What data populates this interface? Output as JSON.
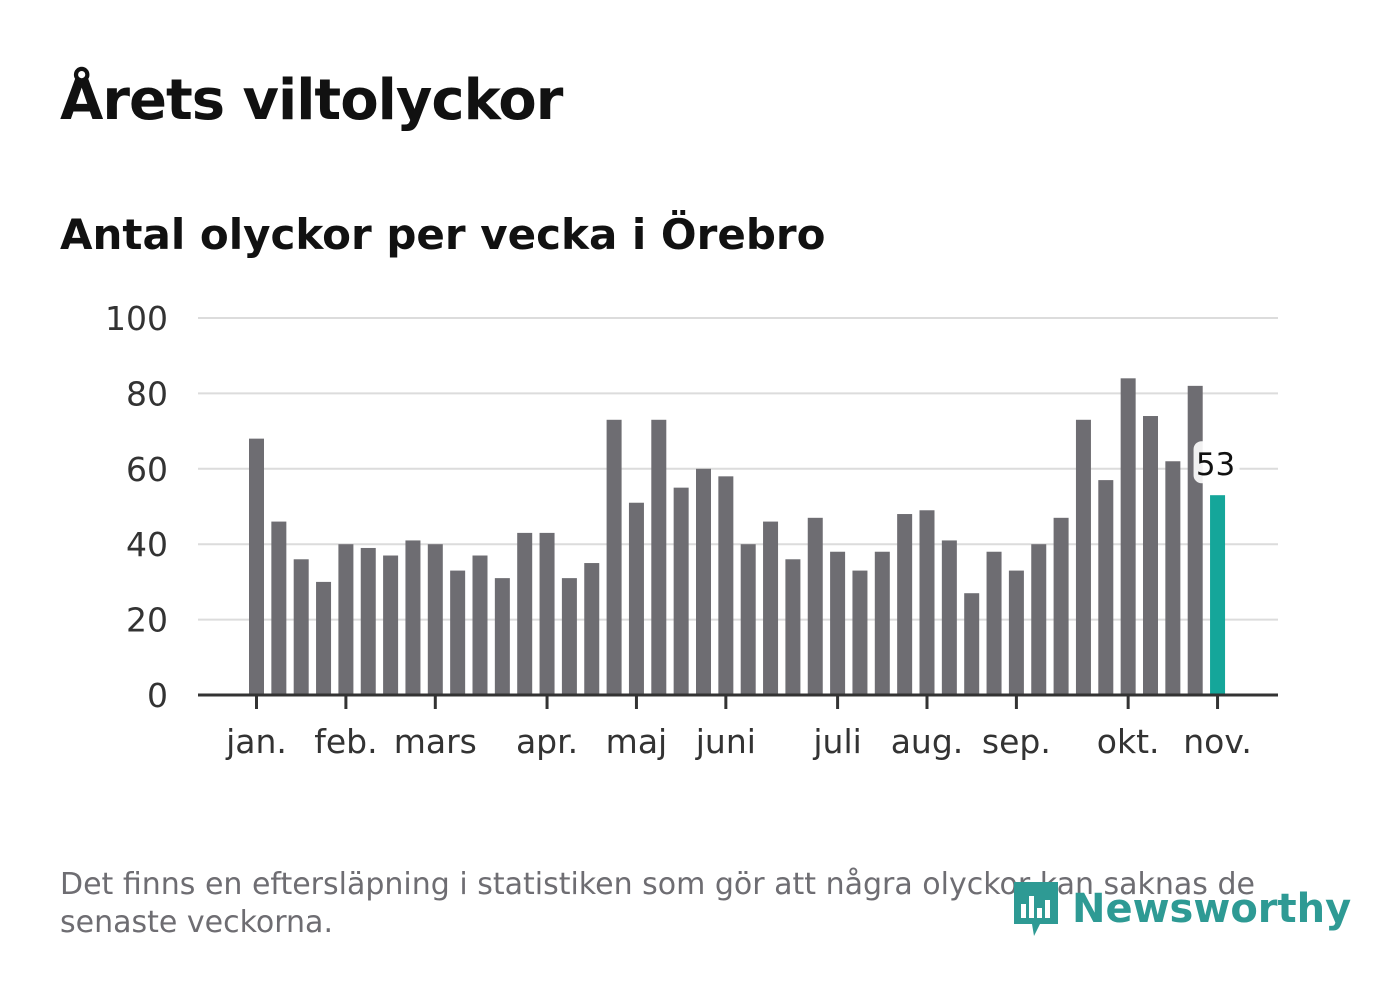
{
  "title": "Årets viltolyckor",
  "subtitle": "Antal olyckor per vecka i Örebro",
  "footnote": "Det finns en eftersläpning i statistiken som gör att några olyckor kan saknas de senaste veckorna.",
  "brand": {
    "name": "Newsworthy",
    "icon": "newsworthy-logo-icon",
    "color": "#2e9a94"
  },
  "chart_data": {
    "type": "bar",
    "title": "Årets viltolyckor",
    "subtitle": "Antal olyckor per vecka i Örebro",
    "xlabel": "",
    "ylabel": "",
    "ylim": [
      0,
      100
    ],
    "yticks": [
      "0",
      "20",
      "40",
      "60",
      "80",
      "100"
    ],
    "grid": true,
    "month_labels": [
      {
        "label": "jan.",
        "week": 1
      },
      {
        "label": "feb.",
        "week": 5
      },
      {
        "label": "mars",
        "week": 9
      },
      {
        "label": "apr.",
        "week": 14
      },
      {
        "label": "maj",
        "week": 18
      },
      {
        "label": "juni",
        "week": 22
      },
      {
        "label": "juli",
        "week": 27
      },
      {
        "label": "aug.",
        "week": 31
      },
      {
        "label": "sep.",
        "week": 35
      },
      {
        "label": "okt.",
        "week": 40
      },
      {
        "label": "nov.",
        "week": 44
      }
    ],
    "values": [
      68,
      46,
      36,
      30,
      40,
      39,
      37,
      41,
      40,
      33,
      37,
      31,
      43,
      43,
      31,
      35,
      73,
      51,
      73,
      55,
      60,
      58,
      40,
      46,
      36,
      47,
      38,
      33,
      38,
      48,
      49,
      41,
      27,
      38,
      33,
      40,
      47,
      73,
      57,
      84,
      74,
      62,
      82,
      53
    ],
    "highlight_label": "53",
    "colors": {
      "bar": "#6e6d72",
      "highlight": "#15a69a",
      "grid": "#dcdcdc",
      "axis": "#333333"
    }
  }
}
